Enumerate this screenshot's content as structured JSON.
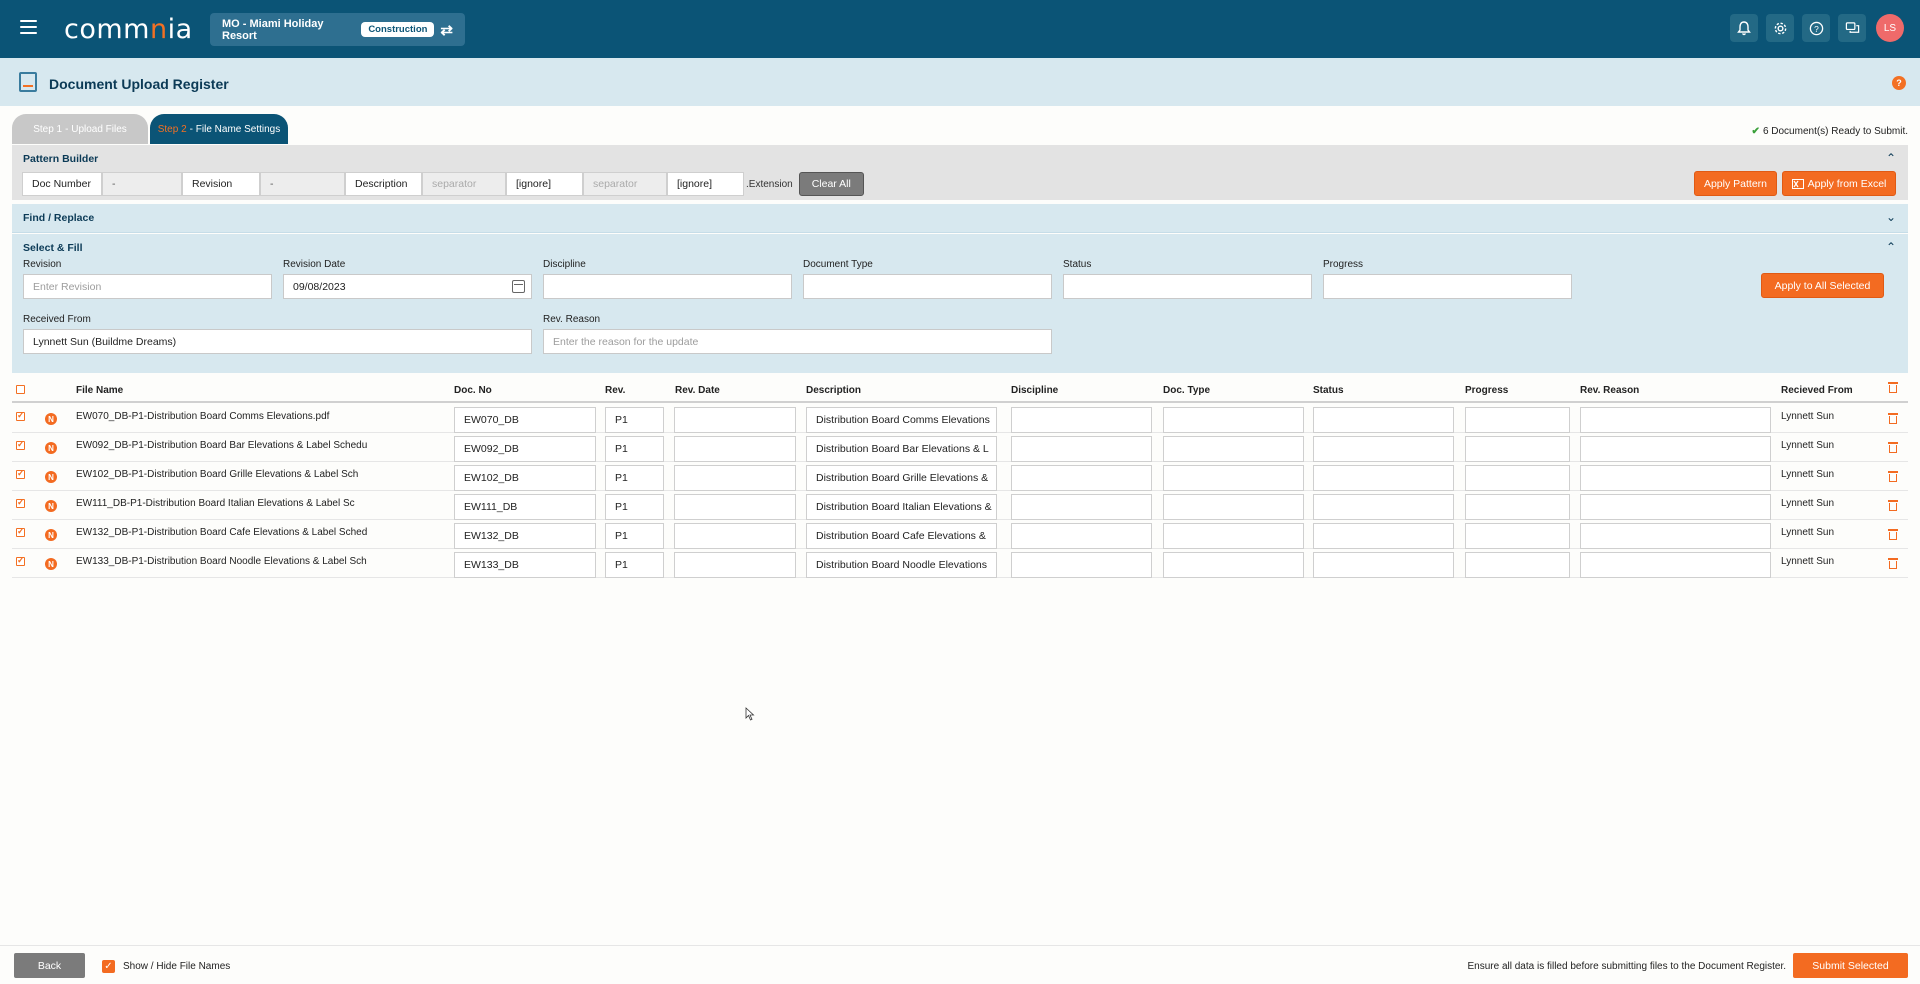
{
  "header": {
    "logo_main": "comm",
    "logo_accent": "n",
    "logo_tail": "ia",
    "project_name": "MO - Miami Holiday Resort",
    "project_tag": "Construction",
    "swap_icon": "⇄",
    "icons": {
      "bell": "🔔",
      "gear": "⚙",
      "help": "?",
      "chat": "💬"
    },
    "avatar": "LS"
  },
  "page": {
    "title": "Document Upload Register",
    "help": "?"
  },
  "steps": {
    "step1_prefix": "Step 1",
    "step1_label": " - Upload Files",
    "step2_prefix": "Step 2",
    "step2_label": " - File Name Settings",
    "ready_check": "✔",
    "ready_text": "6 Document(s) Ready to Submit."
  },
  "pattern_builder": {
    "title": "Pattern Builder",
    "chevron": "⌃",
    "segments": [
      "Doc Number",
      "-",
      "Revision",
      "-",
      "Description",
      "separator",
      "[ignore]",
      "separator",
      "[ignore]"
    ],
    "extension": ".Extension",
    "clear_all": "Clear All",
    "apply_pattern": "Apply Pattern",
    "apply_excel": "Apply from Excel"
  },
  "find_replace": {
    "title": "Find / Replace",
    "chevron": "⌄"
  },
  "select_fill": {
    "title": "Select & Fill",
    "chevron": "⌃",
    "revision_label": "Revision",
    "revision_placeholder": "Enter Revision",
    "revision_date_label": "Revision Date",
    "revision_date_value": "09/08/2023",
    "discipline_label": "Discipline",
    "document_type_label": "Document Type",
    "status_label": "Status",
    "progress_label": "Progress",
    "apply_all": "Apply to All Selected",
    "received_from_label": "Received From",
    "received_from_value": "Lynnett Sun (Buildme Dreams)",
    "rev_reason_label": "Rev. Reason",
    "rev_reason_placeholder": "Enter the reason for the update"
  },
  "table": {
    "headers": {
      "file_name": "File Name",
      "doc_no": "Doc. No",
      "rev": "Rev.",
      "rev_date": "Rev. Date",
      "description": "Description",
      "discipline": "Discipline",
      "doc_type": "Doc. Type",
      "status": "Status",
      "progress": "Progress",
      "rev_reason": "Rev. Reason",
      "received_from": "Recieved From"
    },
    "rows": [
      {
        "badge": "N",
        "file_name": "EW070_DB-P1-Distribution Board Comms Elevations.pdf",
        "doc_no": "EW070_DB",
        "rev": "P1",
        "description": "Distribution Board Comms Elevations",
        "received_from": "Lynnett Sun"
      },
      {
        "badge": "N",
        "file_name": "EW092_DB-P1-Distribution Board Bar Elevations & Label Schedu",
        "doc_no": "EW092_DB",
        "rev": "P1",
        "description": "Distribution Board Bar Elevations & L",
        "received_from": "Lynnett Sun"
      },
      {
        "badge": "N",
        "file_name": "EW102_DB-P1-Distribution Board Grille Elevations & Label Sch",
        "doc_no": "EW102_DB",
        "rev": "P1",
        "description": "Distribution Board Grille Elevations &",
        "received_from": "Lynnett Sun"
      },
      {
        "badge": "N",
        "file_name": "EW111_DB-P1-Distribution Board Italian Elevations & Label Sc",
        "doc_no": "EW111_DB",
        "rev": "P1",
        "description": "Distribution Board Italian Elevations &",
        "received_from": "Lynnett Sun"
      },
      {
        "badge": "N",
        "file_name": "EW132_DB-P1-Distribution Board Cafe Elevations & Label Sched",
        "doc_no": "EW132_DB",
        "rev": "P1",
        "description": "Distribution Board Cafe Elevations &",
        "received_from": "Lynnett Sun"
      },
      {
        "badge": "N",
        "file_name": "EW133_DB-P1-Distribution Board Noodle Elevations & Label Sch",
        "doc_no": "EW133_DB",
        "rev": "P1",
        "description": "Distribution Board Noodle Elevations",
        "received_from": "Lynnett Sun"
      }
    ]
  },
  "footer": {
    "back": "Back",
    "show_check": "✓",
    "show_hide": "Show / Hide File Names",
    "ensure": "Ensure all data is filled before submitting files to the Document Register.",
    "submit": "Submit Selected"
  },
  "colors": {
    "brand": "#0b5476",
    "accent": "#f36b21",
    "panel": "#d7e8ef"
  }
}
